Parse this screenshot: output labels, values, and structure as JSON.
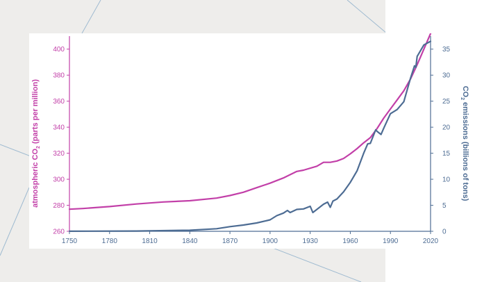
{
  "chart_data": {
    "type": "line",
    "title": "",
    "xlabel": "",
    "x_ticks": [
      "1750",
      "1780",
      "1810",
      "1840",
      "1870",
      "1900",
      "1930",
      "1960",
      "1990",
      "2020"
    ],
    "xlim": [
      1750,
      2020
    ],
    "y_left": {
      "label_main": "atmospheric CO",
      "label_sub": "2",
      "label_tail": " (parts per million)",
      "ticks": [
        "260",
        "280",
        "300",
        "320",
        "340",
        "360",
        "380",
        "400"
      ],
      "lim": [
        260,
        410
      ],
      "color": "#c23fa8"
    },
    "y_right": {
      "label_main": "CO",
      "label_sub": "2",
      "label_tail": " emissions (billions of tons)",
      "ticks": [
        "0",
        "5",
        "10",
        "15",
        "20",
        "25",
        "30",
        "35"
      ],
      "lim": [
        0,
        37.5
      ],
      "color": "#4d6c93"
    },
    "series": [
      {
        "axis": "left",
        "color": "#c23fa8",
        "x": [
          1750,
          1760,
          1780,
          1800,
          1820,
          1840,
          1860,
          1870,
          1880,
          1890,
          1900,
          1910,
          1920,
          1925,
          1935,
          1940,
          1945,
          1950,
          1955,
          1960,
          1965,
          1970,
          1975,
          1980,
          1985,
          1990,
          1995,
          2000,
          2005,
          2010,
          2015,
          2020
        ],
        "values": [
          277,
          277.5,
          279,
          281,
          282.5,
          283.5,
          285.5,
          287.5,
          290,
          293.5,
          297,
          301,
          306,
          307,
          310,
          313,
          313,
          314,
          316,
          319.5,
          323.5,
          328,
          332,
          339,
          347,
          354,
          361,
          368,
          377,
          388,
          400,
          412
        ]
      },
      {
        "axis": "right",
        "color": "#4d6c93",
        "x": [
          1750,
          1800,
          1840,
          1860,
          1870,
          1880,
          1890,
          1900,
          1905,
          1910,
          1913,
          1915,
          1920,
          1925,
          1930,
          1932,
          1935,
          1940,
          1943,
          1945,
          1947,
          1950,
          1955,
          1960,
          1965,
          1970,
          1973,
          1975,
          1979,
          1980,
          1983,
          1985,
          1990,
          1995,
          2000,
          2005,
          2008,
          2009,
          2010,
          2015,
          2020
        ],
        "values": [
          0.01,
          0.05,
          0.2,
          0.5,
          0.9,
          1.2,
          1.6,
          2.2,
          3.0,
          3.5,
          4.0,
          3.6,
          4.2,
          4.3,
          4.8,
          3.6,
          4.2,
          5.2,
          5.6,
          4.6,
          5.8,
          6.2,
          7.6,
          9.4,
          11.6,
          15.0,
          16.8,
          16.9,
          19.5,
          19.2,
          18.6,
          19.8,
          22.6,
          23.4,
          24.9,
          29.4,
          31.8,
          31.5,
          33.6,
          35.8,
          36.5
        ]
      }
    ]
  }
}
